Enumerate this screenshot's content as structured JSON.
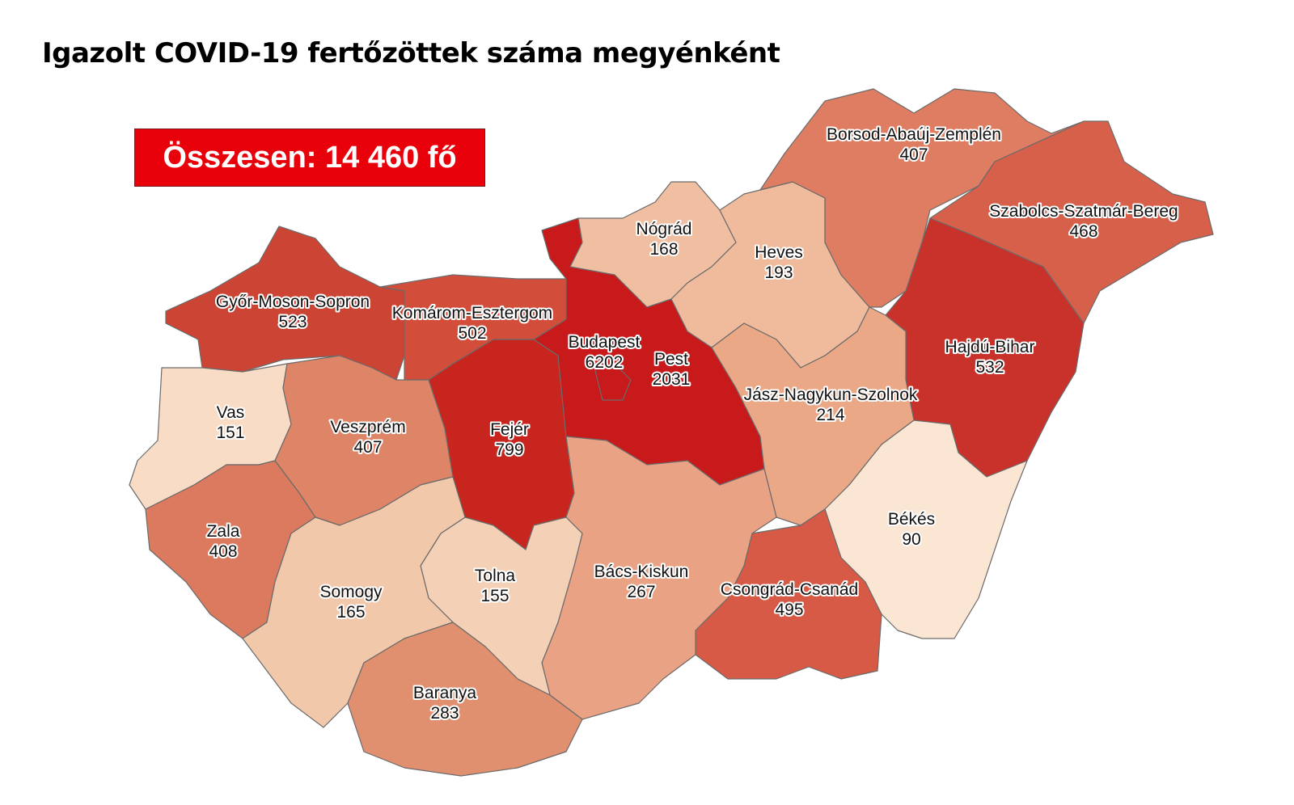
{
  "title": "Igazolt COVID-19 fertőzöttek száma megyénként",
  "total_label": "Összesen: 14 460 fő",
  "counties": [
    {
      "name": "Győr-Moson-Sopron",
      "value": "523",
      "color": "#cc4434"
    },
    {
      "name": "Komárom-Esztergom",
      "value": "502",
      "color": "#d24e3a"
    },
    {
      "name": "Vas",
      "value": "151",
      "color": "#f8dcc6"
    },
    {
      "name": "Veszprém",
      "value": "407",
      "color": "#de8467"
    },
    {
      "name": "Zala",
      "value": "408",
      "color": "#db7a5e"
    },
    {
      "name": "Fejér",
      "value": "799",
      "color": "#c8251f"
    },
    {
      "name": "Pest",
      "value": "2031",
      "color": "#c8191b"
    },
    {
      "name": "Budapest",
      "value": "6202",
      "color": "#c8191b"
    },
    {
      "name": "Nógrád",
      "value": "168",
      "color": "#f0bfa1"
    },
    {
      "name": "Heves",
      "value": "193",
      "color": "#efbb9c"
    },
    {
      "name": "Borsod-Abaúj-Zemplén",
      "value": "407",
      "color": "#de7d62"
    },
    {
      "name": "Szabolcs-Szatmár-Bereg",
      "value": "468",
      "color": "#d6604a"
    },
    {
      "name": "Hajdú-Bihar",
      "value": "532",
      "color": "#c9322a"
    },
    {
      "name": "Jász-Nagykun-Szolnok",
      "value": "214",
      "color": "#eaa886"
    },
    {
      "name": "Békés",
      "value": "90",
      "color": "#fbe6d4"
    },
    {
      "name": "Csongrád-Csanád",
      "value": "495",
      "color": "#d65a45"
    },
    {
      "name": "Bács-Kiskun",
      "value": "267",
      "color": "#e9a283"
    },
    {
      "name": "Tolna",
      "value": "155",
      "color": "#f4d0b6"
    },
    {
      "name": "Somogy",
      "value": "165",
      "color": "#f2c8ab"
    },
    {
      "name": "Baranya",
      "value": "283",
      "color": "#e08f6f"
    }
  ]
}
